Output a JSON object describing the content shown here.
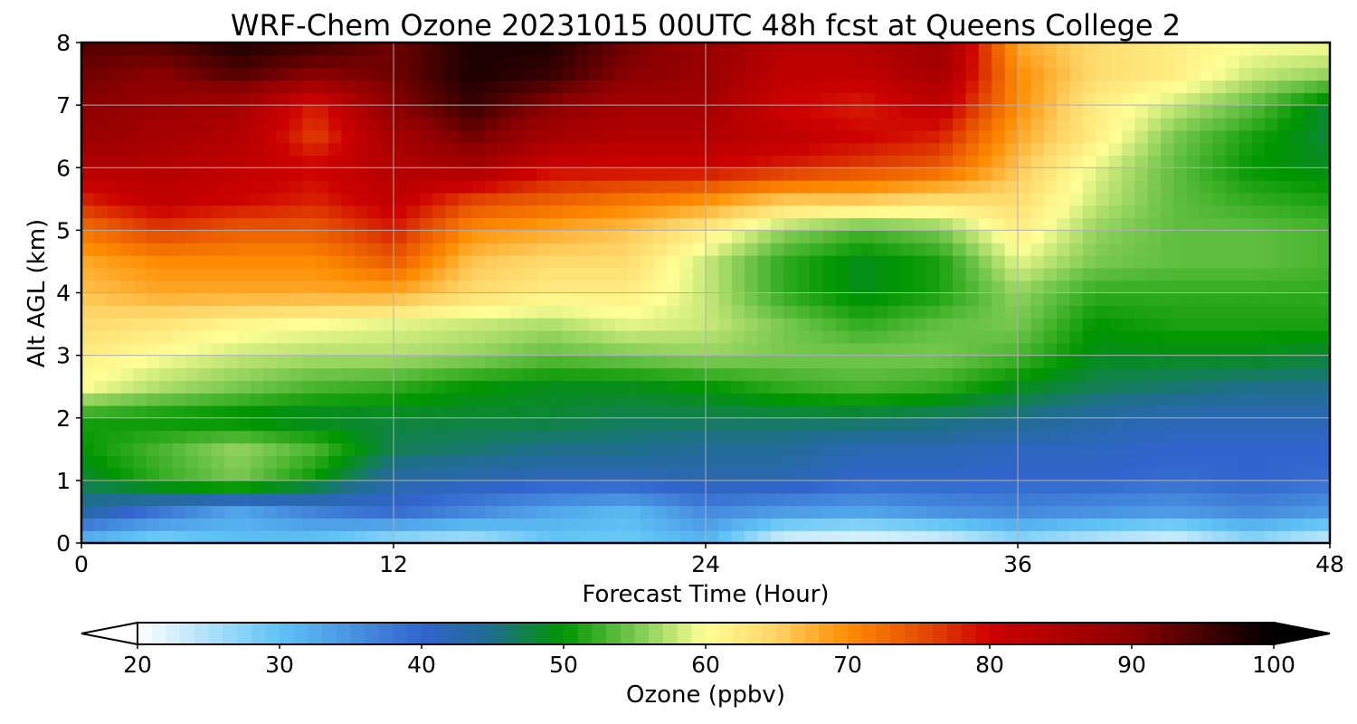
{
  "chart_data": {
    "type": "heatmap",
    "title": "WRF-Chem Ozone  20231015 00UTC 48h fcst at Queens College 2",
    "xlabel": "Forecast Time (Hour)",
    "ylabel": "Alt AGL (km)",
    "xlim": [
      0,
      48
    ],
    "ylim": [
      0,
      8
    ],
    "x_ticks": [
      "0",
      "12",
      "24",
      "36",
      "48"
    ],
    "y_ticks": [
      "0",
      "1",
      "2",
      "3",
      "4",
      "5",
      "6",
      "7",
      "8"
    ],
    "grid": true,
    "colorbar": {
      "label": "Ozone  (ppbv)",
      "range": [
        20,
        100
      ],
      "ticks": [
        "20",
        "30",
        "40",
        "50",
        "60",
        "70",
        "80",
        "90",
        "100"
      ],
      "extend": "both",
      "position": "bottom"
    },
    "x_hours": [
      0,
      3,
      6,
      9,
      12,
      15,
      18,
      21,
      24,
      27,
      30,
      33,
      36,
      39,
      42,
      45,
      48
    ],
    "y_km": [
      0,
      0.5,
      1,
      1.5,
      2,
      2.5,
      3,
      3.5,
      4,
      4.5,
      5,
      5.5,
      6,
      6.5,
      7,
      7.5,
      8
    ],
    "ozone_ppbv": [
      [
        30,
        27,
        30,
        29,
        25,
        24,
        29,
        29,
        31,
        21,
        20,
        21,
        26,
        23,
        21,
        26,
        22
      ],
      [
        43,
        38,
        33,
        37,
        39,
        36,
        33,
        31,
        36,
        34,
        33,
        35,
        36,
        35,
        34,
        36,
        34
      ],
      [
        48,
        52,
        55,
        50,
        43,
        42,
        41,
        41,
        42,
        42,
        40,
        40,
        40,
        40,
        39,
        40,
        39
      ],
      [
        50,
        53,
        56,
        53,
        47,
        46,
        45,
        45,
        44,
        44,
        42,
        42,
        41,
        41,
        40,
        40,
        40
      ],
      [
        51,
        50,
        49,
        48,
        48,
        48,
        48,
        47,
        47,
        47,
        47,
        46,
        45,
        43,
        42,
        42,
        42
      ],
      [
        60,
        57,
        55,
        53,
        52,
        50,
        49,
        49,
        50,
        52,
        53,
        52,
        49,
        47,
        46,
        45,
        45
      ],
      [
        62,
        60,
        58,
        57,
        57,
        56,
        54,
        55,
        56,
        55,
        55,
        55,
        53,
        49,
        49,
        49,
        48
      ],
      [
        64,
        63,
        61,
        60,
        59,
        58,
        57,
        59,
        58,
        55,
        52,
        54,
        55,
        50,
        51,
        51,
        51
      ],
      [
        66,
        68,
        68,
        68,
        68,
        64,
        62,
        62,
        58,
        52,
        49,
        51,
        56,
        52,
        52,
        52,
        52
      ],
      [
        68,
        70,
        70,
        70,
        74,
        66,
        64,
        64,
        58,
        52,
        49,
        51,
        59,
        55,
        54,
        54,
        53
      ],
      [
        72,
        76,
        74,
        74,
        78,
        70,
        68,
        66,
        62,
        56,
        53,
        55,
        62,
        56,
        54,
        54,
        53
      ],
      [
        78,
        82,
        80,
        78,
        82,
        76,
        74,
        72,
        70,
        66,
        66,
        64,
        64,
        58,
        54,
        52,
        51
      ],
      [
        84,
        84,
        82,
        80,
        84,
        86,
        80,
        80,
        80,
        78,
        76,
        74,
        66,
        59,
        54,
        50,
        49
      ],
      [
        88,
        86,
        84,
        76,
        86,
        92,
        86,
        84,
        84,
        82,
        80,
        78,
        68,
        62,
        55,
        51,
        48
      ],
      [
        90,
        88,
        86,
        78,
        90,
        96,
        90,
        86,
        86,
        80,
        78,
        82,
        70,
        62,
        58,
        54,
        48
      ],
      [
        92,
        90,
        94,
        90,
        92,
        98,
        96,
        90,
        88,
        82,
        82,
        86,
        70,
        64,
        62,
        58,
        56
      ],
      [
        94,
        94,
        98,
        96,
        92,
        98,
        98,
        92,
        88,
        84,
        84,
        88,
        68,
        64,
        62,
        60,
        60
      ]
    ]
  }
}
